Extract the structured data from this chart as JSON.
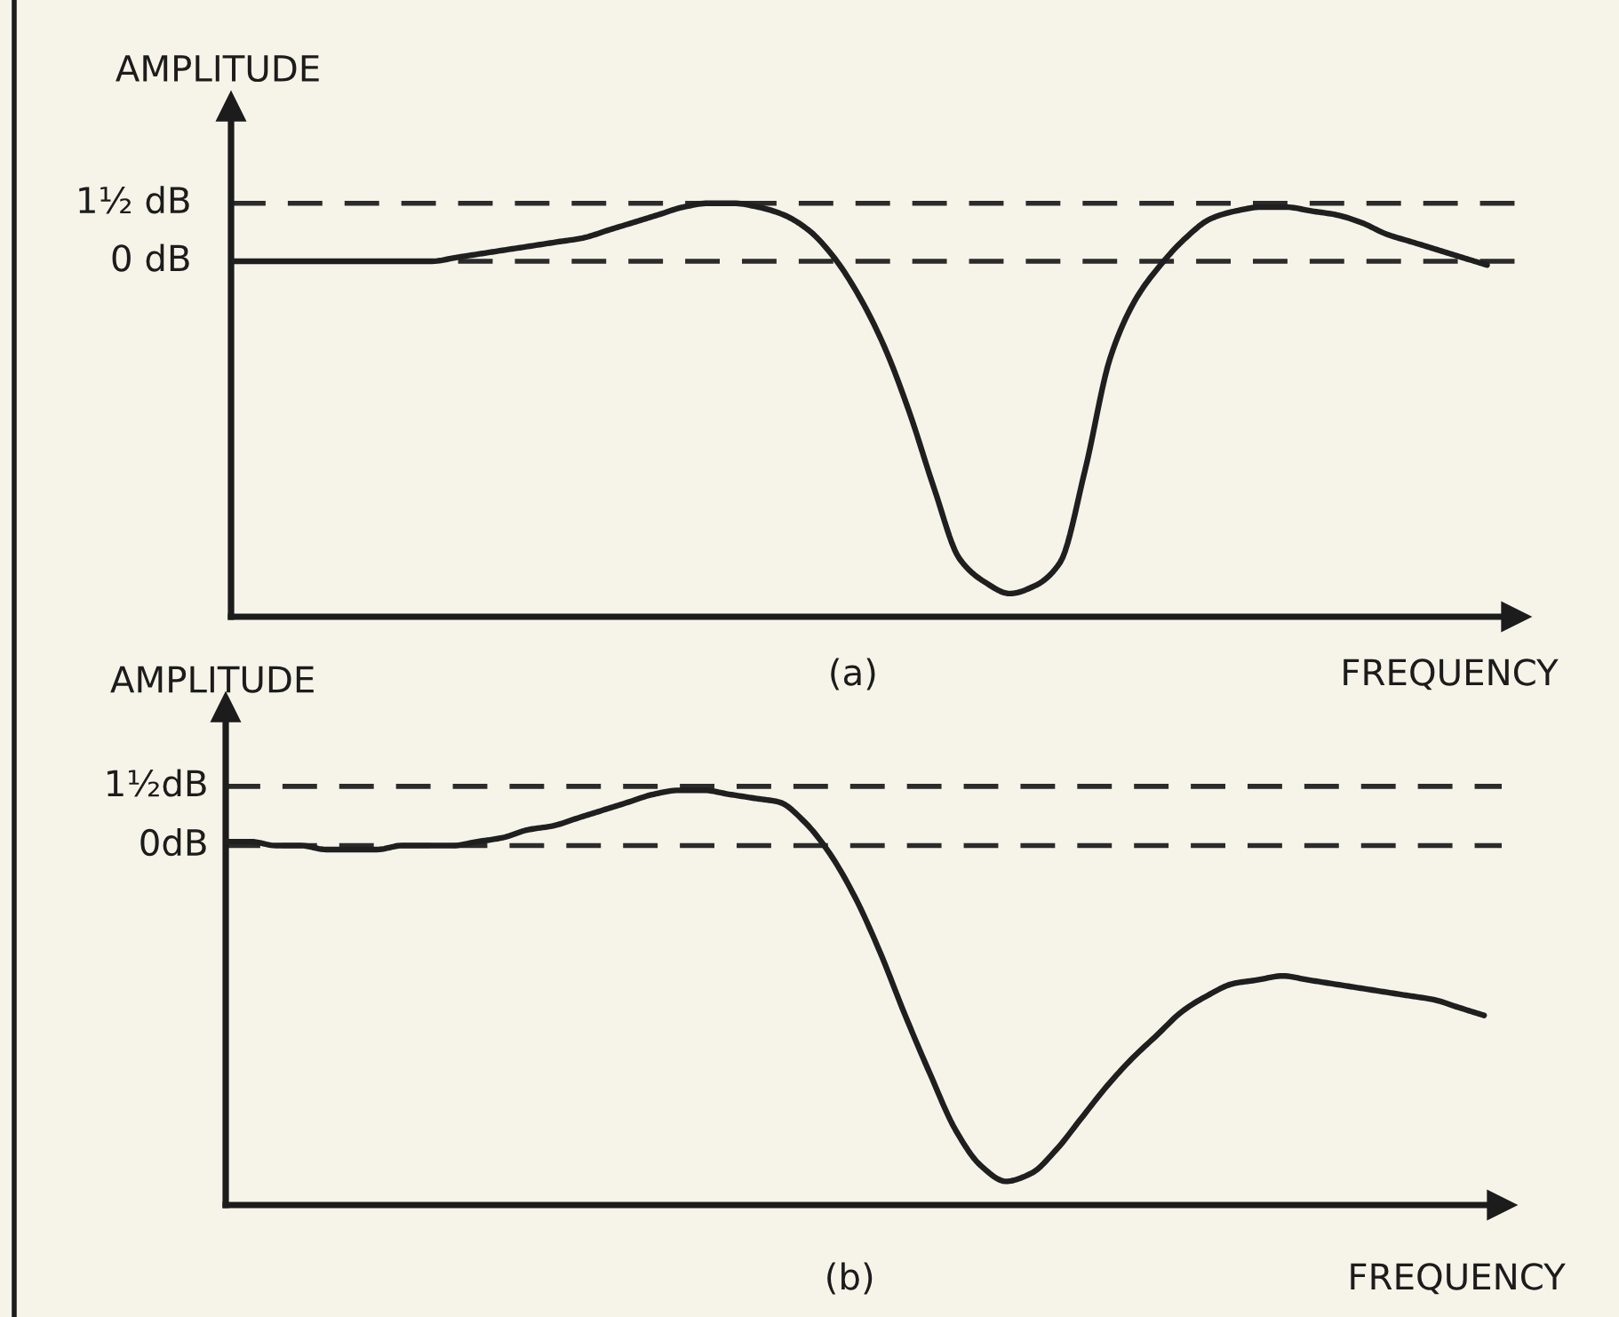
{
  "chart_data": [
    {
      "type": "line",
      "ylabel": "AMPLITUDE",
      "xlabel": "FREQUENCY",
      "annotations": [
        "(a)"
      ],
      "categories": [
        null,
        null,
        null,
        null,
        null,
        null,
        null,
        null,
        null,
        null,
        null,
        null,
        null,
        null,
        null,
        null,
        null,
        null,
        null,
        null,
        null,
        null,
        null,
        null,
        null,
        null,
        null,
        null,
        null,
        null,
        null,
        null,
        null,
        null,
        null,
        null,
        null,
        null,
        null,
        null,
        null,
        null,
        null,
        null,
        null,
        null,
        null,
        null,
        null,
        null,
        null
      ],
      "series": [
        {
          "color": "#1f1f1f",
          "values": [
            0,
            0,
            0,
            0,
            0,
            0,
            0,
            0,
            0,
            0.1,
            0.2,
            0.3,
            0.4,
            0.5,
            0.6,
            0.8,
            1.0,
            1.2,
            1.4,
            1.5,
            1.5,
            1.4,
            1.2,
            0.8,
            0.1,
            -0.9,
            -2.2,
            -3.9,
            -5.9,
            -7.7,
            -8.3,
            -8.6,
            -8.4,
            -7.8,
            -5.4,
            -2.5,
            -1.0,
            -0.1,
            0.6,
            1.1,
            1.3,
            1.4,
            1.4,
            1.3,
            1.2,
            1.0,
            0.7,
            0.5,
            0.3,
            0.1,
            -0.1
          ]
        }
      ],
      "ylim": [
        -9.2,
        4.0
      ],
      "ref_lines": [
        {
          "axis": "y",
          "value": 1.5,
          "label": "1½ dB",
          "color": "#2b2b2b",
          "line_style": "dashed"
        },
        {
          "axis": "y",
          "value": 0,
          "label": "0 dB",
          "color": "#2b2b2b",
          "line_style": "dashed"
        }
      ],
      "tick_labels": false,
      "marker": "none",
      "line_style": "solid"
    },
    {
      "type": "line",
      "ylabel": "AMPLITUDE",
      "xlabel": "FREQUENCY",
      "annotations": [
        "(b)"
      ],
      "categories": [
        null,
        null,
        null,
        null,
        null,
        null,
        null,
        null,
        null,
        null,
        null,
        null,
        null,
        null,
        null,
        null,
        null,
        null,
        null,
        null,
        null,
        null,
        null,
        null,
        null,
        null,
        null,
        null,
        null,
        null,
        null,
        null,
        null,
        null,
        null,
        null,
        null,
        null,
        null,
        null,
        null,
        null,
        null,
        null,
        null,
        null,
        null,
        null,
        null,
        null,
        null
      ],
      "series": [
        {
          "color": "#1f1f1f",
          "values": [
            0.1,
            0.1,
            0,
            0,
            -0.1,
            -0.1,
            -0.1,
            0,
            0,
            0,
            0.1,
            0.2,
            0.4,
            0.5,
            0.7,
            0.9,
            1.1,
            1.3,
            1.4,
            1.4,
            1.3,
            1.2,
            1.1,
            0.6,
            -0.2,
            -1.3,
            -2.7,
            -4.3,
            -5.8,
            -7.2,
            -8.1,
            -8.5,
            -8.3,
            -7.7,
            -6.9,
            -6.1,
            -5.4,
            -4.8,
            -4.2,
            -3.8,
            -3.5,
            -3.4,
            -3.3,
            -3.4,
            -3.5,
            -3.6,
            -3.7,
            -3.8,
            -3.9,
            -4.1,
            -4.3
          ]
        }
      ],
      "ylim": [
        -9.1,
        3.5
      ],
      "ref_lines": [
        {
          "axis": "y",
          "value": 1.5,
          "label": "1½dB",
          "color": "#2b2b2b",
          "line_style": "dashed"
        },
        {
          "axis": "y",
          "value": 0,
          "label": "0dB",
          "color": "#2b2b2b",
          "line_style": "dashed"
        }
      ],
      "tick_labels": false,
      "marker": "none",
      "line_style": "solid"
    }
  ]
}
